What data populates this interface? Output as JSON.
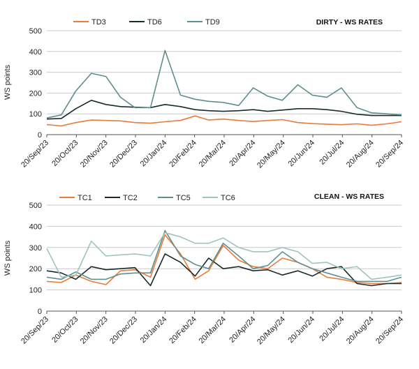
{
  "chart_data": [
    {
      "type": "line",
      "title": "DIRTY - WS RATES",
      "ylabel": "WS points",
      "ylim": [
        0,
        500
      ],
      "yticks": [
        0,
        100,
        200,
        300,
        400,
        500
      ],
      "grid": "horizontal",
      "legend_position": "top",
      "x_tick_labels": [
        "20/Sep/23",
        "20/Oct/23",
        "20/Nov/23",
        "20/Dec/23",
        "20/Jan/24",
        "20/Feb/24",
        "20/Mar/24",
        "20/Apr/24",
        "20/May/24",
        "20/Jun/24",
        "20/Jul/24",
        "20/Aug/24",
        "20/Sep/24"
      ],
      "series": [
        {
          "name": "TD3",
          "color": "#e87c3a",
          "x": [
            "2023-09-20",
            "2023-10-05",
            "2023-10-20",
            "2023-11-05",
            "2023-11-20",
            "2023-12-05",
            "2023-12-20",
            "2024-01-05",
            "2024-01-20",
            "2024-02-05",
            "2024-02-20",
            "2024-03-05",
            "2024-03-20",
            "2024-04-05",
            "2024-04-20",
            "2024-05-05",
            "2024-05-20",
            "2024-06-05",
            "2024-06-20",
            "2024-07-05",
            "2024-07-20",
            "2024-08-05",
            "2024-08-20",
            "2024-09-05",
            "2024-09-20"
          ],
          "values": [
            48,
            42,
            58,
            70,
            68,
            66,
            58,
            55,
            62,
            68,
            90,
            70,
            75,
            68,
            63,
            68,
            72,
            58,
            53,
            50,
            48,
            52,
            45,
            52,
            62
          ]
        },
        {
          "name": "TD6",
          "color": "#1a2a2a",
          "x": [
            "2023-09-20",
            "2023-10-05",
            "2023-10-20",
            "2023-11-05",
            "2023-11-20",
            "2023-12-05",
            "2023-12-20",
            "2024-01-05",
            "2024-01-20",
            "2024-02-05",
            "2024-02-20",
            "2024-03-05",
            "2024-03-20",
            "2024-04-05",
            "2024-04-20",
            "2024-05-05",
            "2024-05-20",
            "2024-06-05",
            "2024-06-20",
            "2024-07-05",
            "2024-07-20",
            "2024-08-05",
            "2024-08-20",
            "2024-09-05",
            "2024-09-20"
          ],
          "values": [
            75,
            78,
            125,
            165,
            145,
            135,
            132,
            130,
            145,
            135,
            120,
            115,
            112,
            115,
            120,
            112,
            118,
            125,
            125,
            120,
            112,
            98,
            92,
            92,
            92
          ]
        },
        {
          "name": "TD9",
          "color": "#5e8f8d",
          "x": [
            "2023-09-20",
            "2023-10-05",
            "2023-10-20",
            "2023-11-05",
            "2023-11-20",
            "2023-12-05",
            "2023-12-20",
            "2024-01-05",
            "2024-01-20",
            "2024-02-05",
            "2024-02-20",
            "2024-03-05",
            "2024-03-20",
            "2024-04-05",
            "2024-04-20",
            "2024-05-05",
            "2024-05-20",
            "2024-06-05",
            "2024-06-20",
            "2024-07-05",
            "2024-07-20",
            "2024-08-05",
            "2024-08-20",
            "2024-09-05",
            "2024-09-20"
          ],
          "values": [
            80,
            95,
            210,
            295,
            280,
            180,
            130,
            130,
            405,
            190,
            170,
            160,
            155,
            140,
            225,
            185,
            165,
            240,
            190,
            180,
            225,
            130,
            105,
            100,
            95
          ]
        }
      ]
    },
    {
      "type": "line",
      "title": "CLEAN - WS RATES",
      "ylabel": "WS points",
      "ylim": [
        0,
        500
      ],
      "yticks": [
        0,
        100,
        200,
        300,
        400,
        500
      ],
      "grid": "horizontal",
      "legend_position": "top",
      "x_tick_labels": [
        "20/Sep/23",
        "20/Oct/23",
        "20/Nov/23",
        "20/Dec/23",
        "20/Jan/24",
        "20/Feb/24",
        "20/Mar/24",
        "20/Apr/24",
        "20/May/24",
        "20/Jun/24",
        "20/Jul/24",
        "20/Aug/24",
        "20/Sep/24"
      ],
      "series": [
        {
          "name": "TC1",
          "color": "#e87c3a",
          "x": [
            "2023-09-20",
            "2023-10-05",
            "2023-10-20",
            "2023-11-05",
            "2023-11-20",
            "2023-12-05",
            "2023-12-20",
            "2024-01-05",
            "2024-01-20",
            "2024-02-05",
            "2024-02-20",
            "2024-03-05",
            "2024-03-20",
            "2024-04-05",
            "2024-04-20",
            "2024-05-05",
            "2024-05-20",
            "2024-06-05",
            "2024-06-20",
            "2024-07-05",
            "2024-07-20",
            "2024-08-05",
            "2024-08-20",
            "2024-09-05",
            "2024-09-20"
          ],
          "values": [
            140,
            135,
            170,
            140,
            125,
            190,
            195,
            160,
            360,
            270,
            150,
            190,
            310,
            240,
            210,
            200,
            250,
            230,
            200,
            160,
            150,
            135,
            130,
            130,
            135
          ]
        },
        {
          "name": "TC2",
          "color": "#1a2a2a",
          "x": [
            "2023-09-20",
            "2023-10-05",
            "2023-10-20",
            "2023-11-05",
            "2023-11-20",
            "2023-12-05",
            "2023-12-20",
            "2024-01-05",
            "2024-01-20",
            "2024-02-05",
            "2024-02-20",
            "2024-03-05",
            "2024-03-20",
            "2024-04-05",
            "2024-04-20",
            "2024-05-05",
            "2024-05-20",
            "2024-06-05",
            "2024-06-20",
            "2024-07-05",
            "2024-07-20",
            "2024-08-05",
            "2024-08-20",
            "2024-09-05",
            "2024-09-20"
          ],
          "values": [
            190,
            180,
            150,
            210,
            195,
            200,
            205,
            120,
            270,
            230,
            165,
            250,
            200,
            210,
            190,
            195,
            170,
            190,
            165,
            200,
            210,
            130,
            120,
            130,
            130
          ]
        },
        {
          "name": "TC5",
          "color": "#5e8f8d",
          "x": [
            "2023-09-20",
            "2023-10-05",
            "2023-10-20",
            "2023-11-05",
            "2023-11-20",
            "2023-12-05",
            "2023-12-20",
            "2024-01-05",
            "2024-01-20",
            "2024-02-05",
            "2024-02-20",
            "2024-03-05",
            "2024-03-20",
            "2024-04-05",
            "2024-04-20",
            "2024-05-05",
            "2024-05-20",
            "2024-06-05",
            "2024-06-20",
            "2024-07-05",
            "2024-07-20",
            "2024-08-05",
            "2024-08-20",
            "2024-09-05",
            "2024-09-20"
          ],
          "values": [
            160,
            150,
            185,
            150,
            150,
            175,
            180,
            180,
            380,
            260,
            220,
            200,
            320,
            260,
            200,
            215,
            280,
            230,
            200,
            180,
            160,
            140,
            140,
            140,
            160
          ]
        },
        {
          "name": "TC6",
          "color": "#9fc3c1",
          "x": [
            "2023-09-20",
            "2023-10-05",
            "2023-10-20",
            "2023-11-05",
            "2023-11-20",
            "2023-12-05",
            "2023-12-20",
            "2024-01-05",
            "2024-01-20",
            "2024-02-05",
            "2024-02-20",
            "2024-03-05",
            "2024-03-20",
            "2024-04-05",
            "2024-04-20",
            "2024-05-05",
            "2024-05-20",
            "2024-06-05",
            "2024-06-20",
            "2024-07-05",
            "2024-07-20",
            "2024-08-05",
            "2024-08-20",
            "2024-09-05",
            "2024-09-20"
          ],
          "values": [
            295,
            160,
            170,
            330,
            260,
            265,
            270,
            260,
            370,
            350,
            320,
            320,
            345,
            300,
            280,
            280,
            300,
            280,
            225,
            230,
            200,
            210,
            150,
            160,
            170
          ]
        }
      ]
    }
  ]
}
